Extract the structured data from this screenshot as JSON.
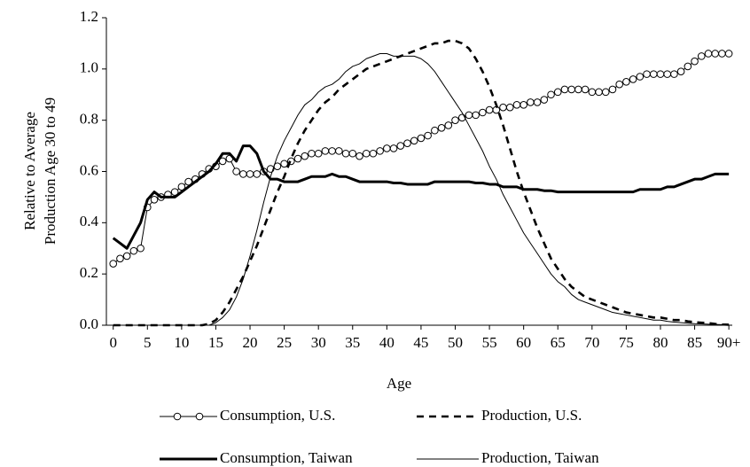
{
  "chart_data": {
    "type": "line",
    "x_label": "Age",
    "y_label": [
      "Relative to Average",
      "Production Age 30 to 49"
    ],
    "x": [
      0,
      1,
      2,
      3,
      4,
      5,
      6,
      7,
      8,
      9,
      10,
      11,
      12,
      13,
      14,
      15,
      16,
      17,
      18,
      19,
      20,
      21,
      22,
      23,
      24,
      25,
      26,
      27,
      28,
      29,
      30,
      31,
      32,
      33,
      34,
      35,
      36,
      37,
      38,
      39,
      40,
      41,
      42,
      43,
      44,
      45,
      46,
      47,
      48,
      49,
      50,
      51,
      52,
      53,
      54,
      55,
      56,
      57,
      58,
      59,
      60,
      61,
      62,
      63,
      64,
      65,
      66,
      67,
      68,
      69,
      70,
      71,
      72,
      73,
      74,
      75,
      76,
      77,
      78,
      79,
      80,
      81,
      82,
      83,
      84,
      85,
      86,
      87,
      88,
      89,
      90
    ],
    "xlim": [
      -1,
      90.5
    ],
    "xticks": [
      0,
      5,
      10,
      15,
      20,
      25,
      30,
      35,
      40,
      45,
      50,
      55,
      60,
      65,
      70,
      75,
      80,
      85,
      {
        "value": 90,
        "label": "90+"
      }
    ],
    "ylim": [
      0,
      1.2
    ],
    "yticks": [
      {
        "value": 0,
        "label": "0.0"
      },
      0.2,
      0.4,
      0.6,
      0.8,
      {
        "value": 1,
        "label": "1.0"
      },
      1.2
    ],
    "grid": false,
    "legend": "bottom",
    "series": [
      {
        "name": "Consumption, U.S.",
        "color": "#000000",
        "width": 1,
        "dash": false,
        "marker": "circle",
        "values": [
          0.24,
          0.26,
          0.27,
          0.29,
          0.3,
          0.46,
          0.49,
          0.5,
          0.51,
          0.52,
          0.54,
          0.56,
          0.57,
          0.59,
          0.61,
          0.62,
          0.64,
          0.65,
          0.6,
          0.59,
          0.59,
          0.59,
          0.6,
          0.61,
          0.62,
          0.63,
          0.64,
          0.65,
          0.66,
          0.67,
          0.67,
          0.68,
          0.68,
          0.68,
          0.67,
          0.67,
          0.66,
          0.67,
          0.67,
          0.68,
          0.69,
          0.69,
          0.7,
          0.71,
          0.72,
          0.73,
          0.74,
          0.76,
          0.77,
          0.78,
          0.8,
          0.81,
          0.82,
          0.82,
          0.83,
          0.84,
          0.84,
          0.85,
          0.85,
          0.86,
          0.86,
          0.87,
          0.87,
          0.88,
          0.9,
          0.91,
          0.92,
          0.92,
          0.92,
          0.92,
          0.91,
          0.91,
          0.91,
          0.92,
          0.94,
          0.95,
          0.96,
          0.97,
          0.98,
          0.98,
          0.98,
          0.98,
          0.98,
          0.99,
          1.01,
          1.03,
          1.05,
          1.06,
          1.06,
          1.06,
          1.06
        ]
      },
      {
        "name": "Production, U.S.",
        "color": "#000000",
        "width": 2.6,
        "dash": true,
        "marker": "none",
        "values": [
          0,
          0,
          0,
          0,
          0,
          0,
          0,
          0,
          0,
          0,
          0,
          0,
          0,
          0,
          0.005,
          0.02,
          0.05,
          0.09,
          0.14,
          0.19,
          0.25,
          0.31,
          0.38,
          0.45,
          0.52,
          0.58,
          0.65,
          0.71,
          0.76,
          0.8,
          0.84,
          0.87,
          0.89,
          0.92,
          0.94,
          0.96,
          0.98,
          1.0,
          1.01,
          1.02,
          1.03,
          1.04,
          1.05,
          1.06,
          1.07,
          1.08,
          1.09,
          1.1,
          1.1,
          1.11,
          1.11,
          1.1,
          1.08,
          1.04,
          0.99,
          0.93,
          0.86,
          0.78,
          0.69,
          0.6,
          0.52,
          0.45,
          0.38,
          0.32,
          0.26,
          0.22,
          0.18,
          0.15,
          0.13,
          0.11,
          0.1,
          0.09,
          0.08,
          0.07,
          0.06,
          0.05,
          0.045,
          0.04,
          0.035,
          0.03,
          0.03,
          0.025,
          0.02,
          0.02,
          0.015,
          0.012,
          0.01,
          0.008,
          0.005,
          0.003,
          0.002
        ]
      },
      {
        "name": "Consumption, Taiwan",
        "color": "#000000",
        "width": 3,
        "dash": false,
        "marker": "none",
        "values": [
          0.34,
          0.32,
          0.3,
          0.35,
          0.4,
          0.49,
          0.52,
          0.5,
          0.5,
          0.5,
          0.52,
          0.54,
          0.56,
          0.58,
          0.6,
          0.63,
          0.67,
          0.67,
          0.64,
          0.7,
          0.7,
          0.67,
          0.6,
          0.57,
          0.57,
          0.56,
          0.56,
          0.56,
          0.57,
          0.58,
          0.58,
          0.58,
          0.59,
          0.58,
          0.58,
          0.57,
          0.56,
          0.56,
          0.56,
          0.56,
          0.56,
          0.555,
          0.555,
          0.55,
          0.55,
          0.55,
          0.55,
          0.56,
          0.56,
          0.56,
          0.56,
          0.56,
          0.56,
          0.555,
          0.555,
          0.55,
          0.55,
          0.54,
          0.54,
          0.54,
          0.53,
          0.53,
          0.53,
          0.525,
          0.525,
          0.52,
          0.52,
          0.52,
          0.52,
          0.52,
          0.52,
          0.52,
          0.52,
          0.52,
          0.52,
          0.52,
          0.52,
          0.53,
          0.53,
          0.53,
          0.53,
          0.54,
          0.54,
          0.55,
          0.56,
          0.57,
          0.57,
          0.58,
          0.59,
          0.59,
          0.59
        ]
      },
      {
        "name": "Production, Taiwan",
        "color": "#000000",
        "width": 1,
        "dash": false,
        "marker": "none",
        "values": [
          0,
          0,
          0,
          0,
          0,
          0,
          0,
          0,
          0,
          0,
          0,
          0,
          0,
          0,
          0,
          0.01,
          0.03,
          0.06,
          0.11,
          0.18,
          0.27,
          0.37,
          0.48,
          0.58,
          0.66,
          0.72,
          0.77,
          0.82,
          0.86,
          0.88,
          0.91,
          0.93,
          0.94,
          0.96,
          0.99,
          1.01,
          1.02,
          1.04,
          1.05,
          1.06,
          1.06,
          1.05,
          1.05,
          1.05,
          1.05,
          1.04,
          1.02,
          0.99,
          0.95,
          0.91,
          0.87,
          0.83,
          0.78,
          0.73,
          0.68,
          0.62,
          0.57,
          0.51,
          0.46,
          0.41,
          0.36,
          0.32,
          0.28,
          0.24,
          0.2,
          0.17,
          0.15,
          0.12,
          0.1,
          0.09,
          0.08,
          0.07,
          0.06,
          0.05,
          0.045,
          0.04,
          0.035,
          0.03,
          0.025,
          0.02,
          0.02,
          0.015,
          0.012,
          0.01,
          0.008,
          0.006,
          0.005,
          0.004,
          0.003,
          0.002,
          0.002
        ]
      }
    ]
  }
}
